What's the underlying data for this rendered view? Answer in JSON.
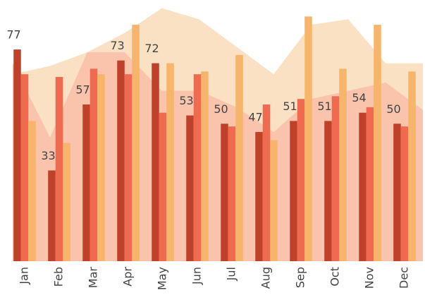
{
  "chart_data": {
    "type": "bar",
    "categories": [
      "Jan",
      "Feb",
      "Mar",
      "Apr",
      "May",
      "Jun",
      "Jul",
      "Aug",
      "Sep",
      "Oct",
      "Nov",
      "Dec"
    ],
    "ylim": [
      0,
      95
    ],
    "series": [
      {
        "type": "area",
        "color": "#fbe1c4",
        "values": [
          68,
          71,
          76,
          83,
          92,
          88,
          78,
          68,
          86,
          88,
          72,
          72
        ]
      },
      {
        "type": "area",
        "color": "#f9c3ac",
        "values": [
          72,
          45,
          76,
          76,
          62,
          62,
          56,
          47,
          59,
          62,
          65,
          55
        ]
      },
      {
        "type": "bar",
        "color": "#c0412a",
        "labels": true,
        "values": [
          77,
          33,
          57,
          73,
          72,
          53,
          50,
          47,
          51,
          51,
          54,
          50
        ]
      },
      {
        "type": "bar",
        "color": "#ef6a4f",
        "values": [
          68,
          67,
          70,
          68,
          54,
          68,
          49,
          57,
          59,
          60,
          56,
          49
        ]
      },
      {
        "type": "bar",
        "color": "#f6b56a",
        "values": [
          51,
          43,
          68,
          86,
          72,
          69,
          75,
          44,
          89,
          70,
          86,
          69
        ]
      }
    ]
  }
}
